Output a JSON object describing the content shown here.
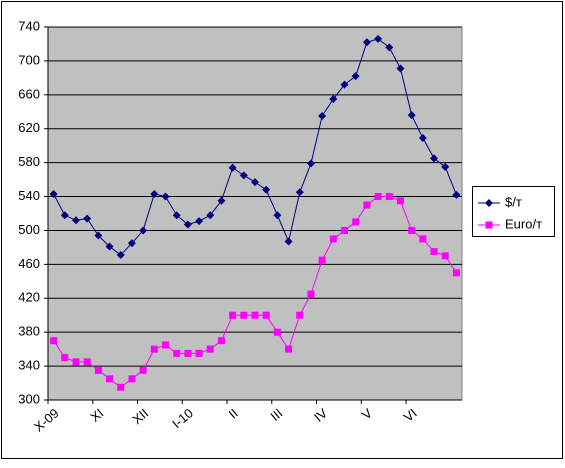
{
  "chart_data": {
    "type": "line",
    "categories": [
      "X-09",
      null,
      null,
      null,
      "XI",
      null,
      null,
      null,
      "XII",
      null,
      null,
      null,
      "I-10",
      null,
      null,
      null,
      "II",
      null,
      null,
      null,
      "III",
      null,
      null,
      null,
      "IV",
      null,
      null,
      null,
      "V",
      null,
      null,
      null,
      "VI",
      null,
      null,
      null,
      null
    ],
    "series": [
      {
        "name": "$/т",
        "color": "#000080",
        "marker": "diamond",
        "values": [
          543,
          518,
          512,
          514,
          494,
          481,
          471,
          485,
          500,
          543,
          540,
          518,
          507,
          511,
          518,
          535,
          574,
          565,
          557,
          548,
          518,
          487,
          545,
          579,
          635,
          655,
          672,
          682,
          722,
          726,
          716,
          691,
          636,
          609,
          585,
          575,
          542
        ]
      },
      {
        "name": "Euro/т",
        "color": "#ff00ff",
        "marker": "square",
        "values": [
          370,
          350,
          345,
          345,
          335,
          325,
          315,
          325,
          335,
          360,
          365,
          355,
          355,
          355,
          360,
          370,
          400,
          400,
          400,
          400,
          380,
          360,
          400,
          425,
          465,
          490,
          500,
          510,
          530,
          540,
          540,
          535,
          500,
          490,
          475,
          470,
          450
        ]
      }
    ],
    "ylim": [
      300,
      740
    ],
    "yticks": [
      300,
      340,
      380,
      420,
      460,
      500,
      540,
      580,
      620,
      660,
      700,
      740
    ],
    "grid": true,
    "legend": "right"
  }
}
